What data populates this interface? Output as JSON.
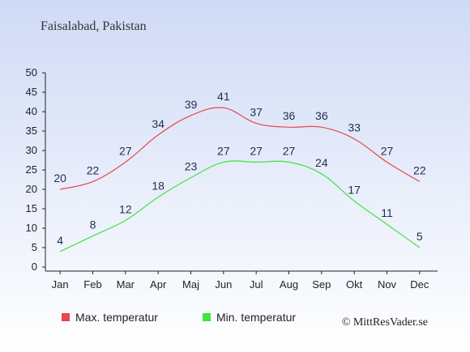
{
  "header": {
    "location": "Faisalabad, Pakistan"
  },
  "footer": {
    "credit": "© MittResVader.se"
  },
  "chart_data": {
    "type": "line",
    "title": "",
    "xlabel": "",
    "ylabel": "",
    "categories": [
      "Jan",
      "Feb",
      "Mar",
      "Apr",
      "Maj",
      "Jun",
      "Jul",
      "Aug",
      "Sep",
      "Okt",
      "Nov",
      "Dec"
    ],
    "ylim": [
      0,
      50
    ],
    "yticks": [
      0,
      5,
      10,
      15,
      20,
      25,
      30,
      35,
      40,
      45,
      50
    ],
    "grid": false,
    "legend_position": "bottom-left",
    "series": [
      {
        "name": "Max. temperatur",
        "color": "#e8474b",
        "values": [
          20,
          22,
          27,
          34,
          39,
          41,
          37,
          36,
          36,
          33,
          27,
          22
        ]
      },
      {
        "name": "Min. temperatur",
        "color": "#3ee63e",
        "values": [
          4,
          8,
          12,
          18,
          23,
          27,
          27,
          27,
          24,
          17,
          11,
          5
        ]
      }
    ]
  }
}
